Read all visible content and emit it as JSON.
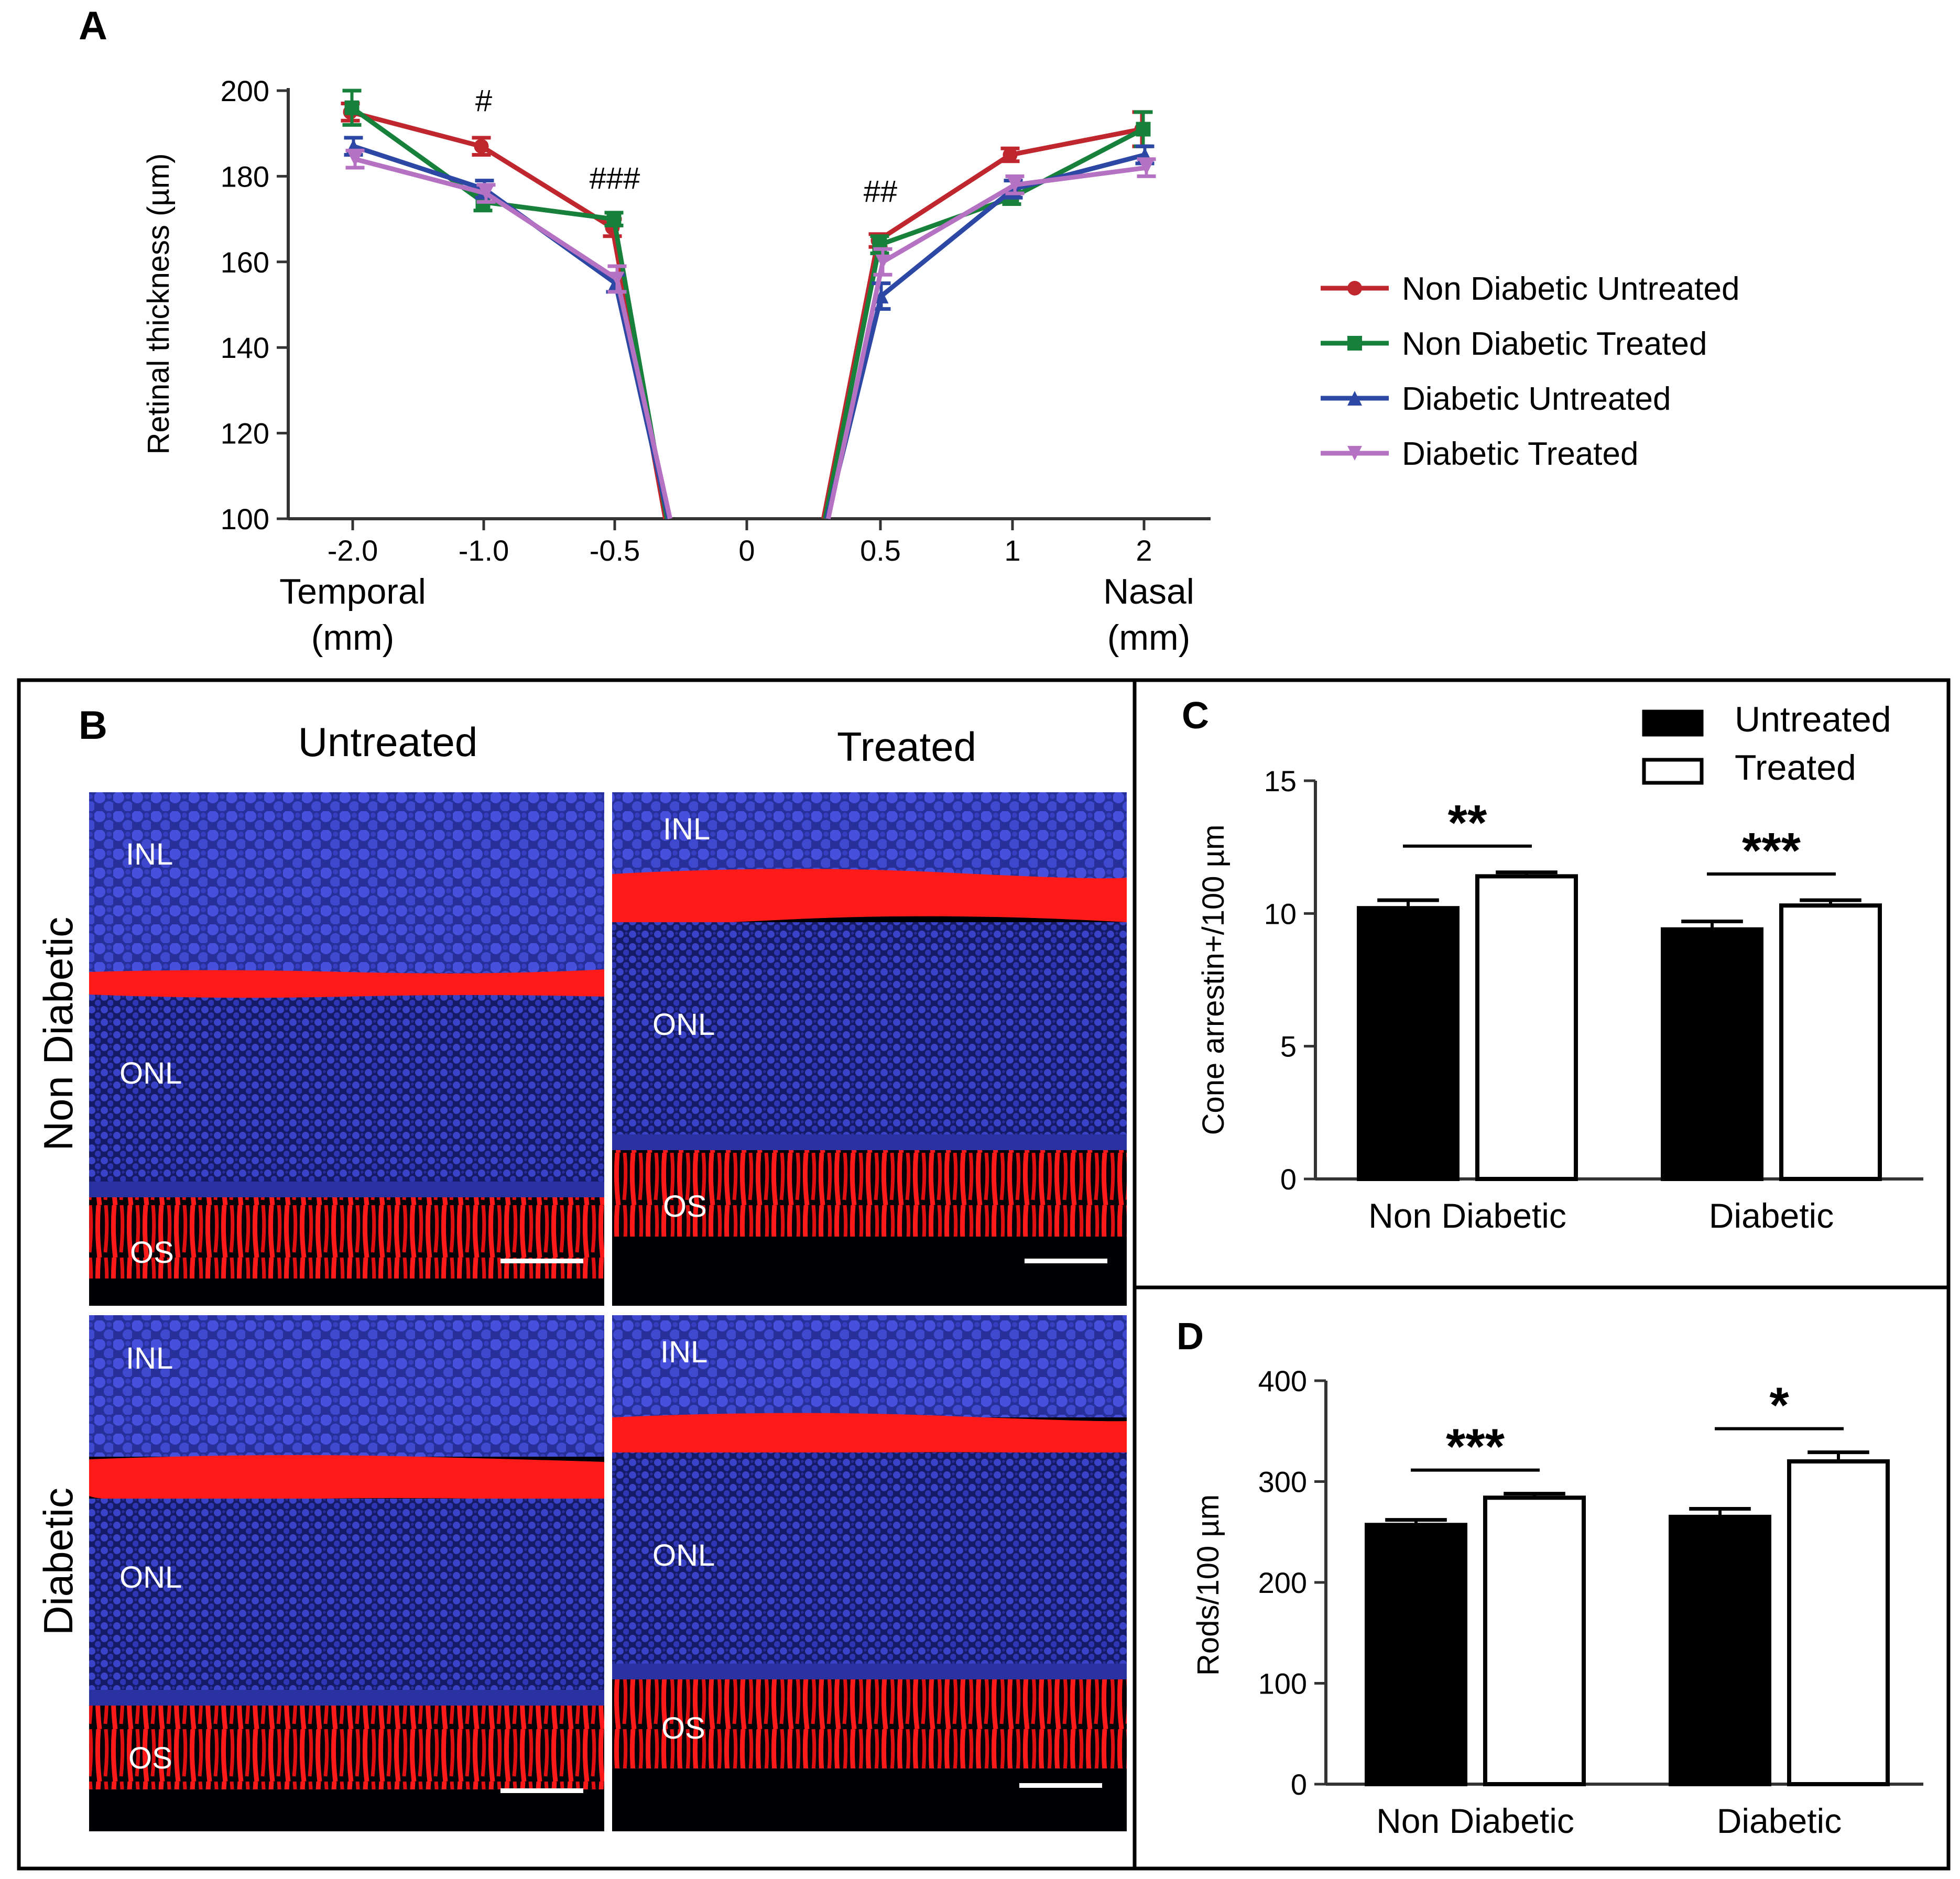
{
  "panels": {
    "A": "A",
    "B": "B",
    "C": "C",
    "D": "D"
  },
  "colors": {
    "non_diabetic_untreated": "#c0262d",
    "non_diabetic_treated": "#17803b",
    "diabetic_untreated": "#2d48a4",
    "diabetic_treated": "#b572c3",
    "nuclei": "#2a2fa8",
    "arrestin": "#ff1a1a"
  },
  "microscopy": {
    "columns": [
      "Untreated",
      "Treated"
    ],
    "rows": [
      "Non Diabetic",
      "Diabetic"
    ],
    "layer_labels": {
      "inl": "INL",
      "onl": "ONL",
      "os": "OS"
    }
  },
  "chart_data": [
    {
      "panel": "A",
      "type": "line",
      "ylabel": "Retinal thickness (µm)",
      "xlabel": "",
      "ylim": [
        100,
        200
      ],
      "yticks": [
        "100",
        "120",
        "140",
        "160",
        "180",
        "200"
      ],
      "categories": [
        "-2.0",
        "-1.0",
        "-0.5",
        "0",
        "0.5",
        "1",
        "2"
      ],
      "x_annotations": {
        "left": [
          "Temporal",
          "(mm)"
        ],
        "right": [
          "Nasal",
          "(mm)"
        ]
      },
      "significance": [
        {
          "category": "-1.0",
          "label": "#"
        },
        {
          "category": "-0.5",
          "label": "###"
        },
        {
          "category": "0.5",
          "label": "##"
        }
      ],
      "series": [
        {
          "name": "Non Diabetic Untreated",
          "color": "#c0262d",
          "marker": "circle",
          "values": [
            195,
            187,
            168,
            null,
            165,
            185,
            191
          ],
          "errors": [
            2,
            2,
            2,
            null,
            1.5,
            1.5,
            4
          ]
        },
        {
          "name": "Non Diabetic Treated",
          "color": "#17803b",
          "marker": "square",
          "values": [
            196,
            174,
            170,
            null,
            164,
            175,
            191
          ],
          "errors": [
            4,
            2,
            1.5,
            null,
            2,
            1.5,
            4
          ]
        },
        {
          "name": "Diabetic Untreated",
          "color": "#2d48a4",
          "marker": "triangle",
          "values": [
            187,
            177,
            155,
            null,
            152,
            177,
            185
          ],
          "errors": [
            2,
            2,
            2,
            null,
            3,
            2,
            2
          ]
        },
        {
          "name": "Diabetic Treated",
          "color": "#b572c3",
          "marker": "triangle-down",
          "values": [
            184,
            176,
            156,
            null,
            160,
            178,
            182
          ],
          "errors": [
            2,
            2,
            3,
            null,
            3,
            2,
            2
          ]
        }
      ],
      "drop_to_axis_at": [
        -0.3,
        0.3
      ]
    },
    {
      "panel": "C",
      "type": "bar",
      "ylabel": "Cone arrestin+/100  µm",
      "ylim": [
        0,
        15
      ],
      "yticks": [
        "0",
        "5",
        "10",
        "15"
      ],
      "categories": [
        "Non Diabetic",
        "Diabetic"
      ],
      "series": [
        {
          "name": "Untreated",
          "fill": "#000000",
          "values": [
            10.2,
            9.4
          ],
          "errors": [
            0.3,
            0.3
          ]
        },
        {
          "name": "Treated",
          "fill": "#ffffff",
          "values": [
            11.4,
            10.3
          ],
          "errors": [
            0.15,
            0.2
          ]
        }
      ],
      "significance": [
        "**",
        "***"
      ]
    },
    {
      "panel": "D",
      "type": "bar",
      "ylabel": "Rods/100 µm",
      "ylim": [
        0,
        400
      ],
      "yticks": [
        "0",
        "100",
        "200",
        "300",
        "400"
      ],
      "categories": [
        "Non Diabetic",
        "Diabetic"
      ],
      "series": [
        {
          "name": "Untreated",
          "fill": "#000000",
          "values": [
            257,
            265
          ],
          "errors": [
            5,
            8
          ]
        },
        {
          "name": "Treated",
          "fill": "#ffffff",
          "values": [
            284,
            320
          ],
          "errors": [
            4,
            9
          ]
        }
      ],
      "significance": [
        "***",
        "*"
      ]
    }
  ]
}
